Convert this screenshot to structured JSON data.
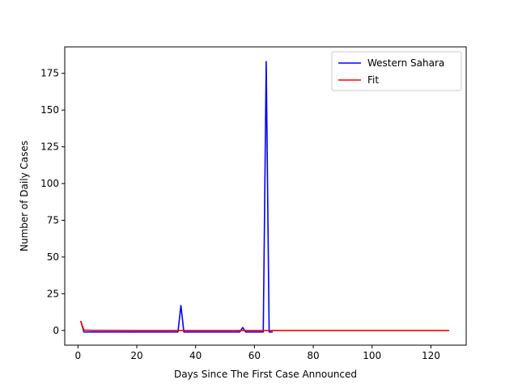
{
  "chart_data": {
    "type": "line",
    "xlabel": "Days Since The First Case Announced",
    "ylabel": "Number of Daily Cases",
    "xlim": [
      -4.5,
      132
    ],
    "ylim": [
      -10,
      193
    ],
    "xticks": [
      0,
      20,
      40,
      60,
      80,
      100,
      120
    ],
    "yticks": [
      0,
      25,
      50,
      75,
      100,
      125,
      150,
      175
    ],
    "grid": false,
    "legend_position": "top-right",
    "series": [
      {
        "name": "Western Sahara",
        "color": "#0000ff",
        "x": [
          1,
          2,
          3,
          34,
          35,
          36,
          55,
          56,
          57,
          63,
          64,
          65,
          66
        ],
        "y": [
          6,
          -1,
          -1,
          -1,
          17,
          -1,
          -1,
          2,
          -1,
          -1,
          183,
          -1,
          -1
        ]
      },
      {
        "name": "Fit",
        "color": "#ff0000",
        "x": [
          1,
          2,
          5,
          10,
          20,
          40,
          60,
          80,
          100,
          126
        ],
        "y": [
          6,
          0.3,
          0.1,
          0.05,
          0.03,
          0.02,
          0.02,
          0.02,
          0.02,
          0.02
        ]
      }
    ]
  }
}
